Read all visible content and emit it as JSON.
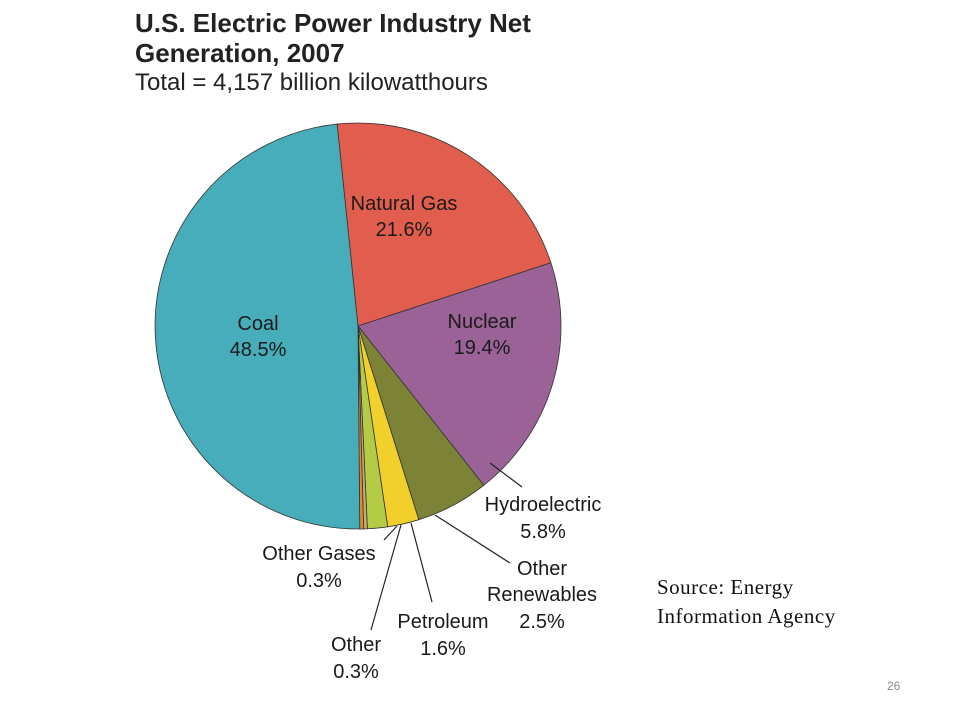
{
  "chart_data": {
    "type": "pie",
    "title": [
      "U.S. Electric Power Industry Net",
      "Generation, 2007"
    ],
    "subtitle": "Total = 4,157 billion kilowatthours",
    "slices": [
      {
        "name": "Natural Gas",
        "value": 21.6,
        "label": "21.6%",
        "color": "#e15e4f"
      },
      {
        "name": "Nuclear",
        "value": 19.4,
        "label": "19.4%",
        "color": "#9b6297"
      },
      {
        "name": "Hydroelectric",
        "value": 5.8,
        "label": "5.8%",
        "color": "#7d8336"
      },
      {
        "name": "Other Renewables",
        "value": 2.5,
        "label": "2.5%",
        "color": "#f2d02c"
      },
      {
        "name": "Petroleum",
        "value": 1.6,
        "label": "1.6%",
        "color": "#b4cc45"
      },
      {
        "name": "Other",
        "value": 0.3,
        "label": "0.3%",
        "color": "#c9a96b"
      },
      {
        "name": "Other Gases",
        "value": 0.3,
        "label": "0.3%",
        "color": "#e08a2e"
      },
      {
        "name": "Coal",
        "value": 48.5,
        "label": "48.5%",
        "color": "#47adba"
      }
    ],
    "label_names": {
      "Natural Gas": [
        "Natural Gas"
      ],
      "Nuclear": [
        "Nuclear"
      ],
      "Hydroelectric": [
        "Hydroelectric"
      ],
      "Other Renewables": [
        "Other",
        "Renewables"
      ],
      "Petroleum": [
        "Petroleum"
      ],
      "Other": [
        "Other"
      ],
      "Other Gases": [
        "Other Gases"
      ],
      "Coal": [
        "Coal"
      ]
    }
  },
  "source_note": [
    "Source:  Energy",
    "Information Agency"
  ],
  "slide_number": "26"
}
